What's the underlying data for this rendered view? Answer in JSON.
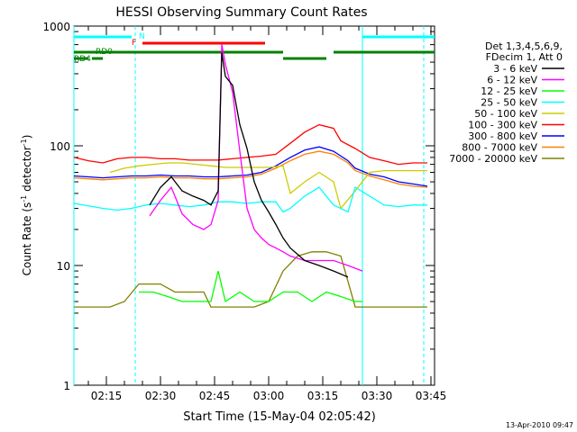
{
  "chart_data": {
    "type": "line",
    "title": "HESSI Observing Summary Count Rates",
    "xlabel": "Start Time (15-May-04 02:05:42)",
    "ylabel_main": "Count Rate (s",
    "ylabel_sup1": "-1",
    "ylabel_mid": " detector",
    "ylabel_sup2": "-1",
    "ylabel_end": ")",
    "y_scale": "log",
    "ylim": [
      1,
      1000
    ],
    "xlim": [
      "02:06",
      "03:46"
    ],
    "x_ticks": [
      "02:15",
      "02:30",
      "02:45",
      "03:00",
      "03:15",
      "03:30",
      "03:45"
    ],
    "y_tick_labels": [
      "1",
      "10",
      "100",
      "1000"
    ],
    "legend_header": [
      "Det 1,3,4,5,6,9,",
      "FDecim 1, Att 0"
    ],
    "timestamp": "13-Apr-2010 09:47",
    "flags": [
      {
        "label": "N",
        "color": "#00ffff"
      },
      {
        "label": "F",
        "color": "#ff0000"
      },
      {
        "label": "RD0",
        "color": "#008000"
      },
      {
        "label": "RD4",
        "color": "#008000"
      }
    ],
    "series": [
      {
        "name": "3 - 6 keV",
        "color": "#000000",
        "x": [
          "02:16",
          "02:20",
          "02:24",
          "02:27",
          "02:30",
          "02:33",
          "02:36",
          "02:39",
          "02:42",
          "02:44",
          "02:46",
          "02:47",
          "02:48",
          "02:50",
          "02:52",
          "02:54",
          "02:56",
          "02:58",
          "03:00",
          "03:02",
          "03:04",
          "03:06",
          "03:10",
          "03:14",
          "03:18",
          "03:22",
          "03:26"
        ],
        "y": [
          null,
          null,
          null,
          32,
          45,
          55,
          42,
          38,
          35,
          32,
          42,
          600,
          380,
          320,
          150,
          95,
          50,
          35,
          28,
          22,
          17,
          14,
          11,
          10,
          9,
          8,
          null
        ]
      },
      {
        "name": "6 - 12 keV",
        "color": "#ff00ff",
        "x": [
          "02:24",
          "02:27",
          "02:30",
          "02:33",
          "02:36",
          "02:39",
          "02:42",
          "02:44",
          "02:46",
          "02:47",
          "02:48",
          "02:50",
          "02:52",
          "02:54",
          "02:56",
          "02:58",
          "03:00",
          "03:02",
          "03:04",
          "03:06",
          "03:10",
          "03:14",
          "03:18",
          "03:22",
          "03:26"
        ],
        "y": [
          null,
          26,
          35,
          45,
          27,
          22,
          20,
          22,
          35,
          700,
          480,
          280,
          90,
          30,
          20,
          17,
          15,
          14,
          13,
          12,
          11,
          11,
          11,
          10,
          9
        ]
      },
      {
        "name": "12 - 25 keV",
        "color": "#00ff00",
        "x": [
          "02:24",
          "02:28",
          "02:32",
          "02:36",
          "02:40",
          "02:44",
          "02:46",
          "02:48",
          "02:52",
          "02:56",
          "03:00",
          "03:04",
          "03:08",
          "03:12",
          "03:16",
          "03:20",
          "03:24",
          "03:26"
        ],
        "y": [
          6,
          6,
          5.5,
          5,
          5,
          5,
          9,
          5,
          6,
          5,
          5,
          6,
          6,
          5,
          6,
          5.5,
          5,
          5
        ]
      },
      {
        "name": "25 - 50 keV",
        "color": "#00ffff",
        "x": [
          "02:06",
          "02:14",
          "02:18",
          "02:22",
          "02:26",
          "02:30",
          "02:34",
          "02:38",
          "02:42",
          "02:46",
          "02:50",
          "02:54",
          "02:58",
          "03:02",
          "03:04",
          "03:06",
          "03:10",
          "03:14",
          "03:18",
          "03:22",
          "03:24",
          "03:28",
          "03:32",
          "03:36",
          "03:40",
          "03:44"
        ],
        "y": [
          33,
          30,
          29,
          30,
          32,
          33,
          32,
          31,
          32,
          34,
          34,
          33,
          34,
          34,
          28,
          30,
          38,
          45,
          32,
          28,
          45,
          38,
          32,
          31,
          32,
          32
        ]
      },
      {
        "name": "50 - 100 keV",
        "color": "#cccc00",
        "x": [
          "02:16",
          "02:20",
          "02:24",
          "02:28",
          "02:32",
          "02:36",
          "02:40",
          "02:44",
          "02:48",
          "02:52",
          "02:56",
          "03:00",
          "03:04",
          "03:06",
          "03:10",
          "03:14",
          "03:18",
          "03:20",
          "03:24",
          "03:28",
          "03:32",
          "03:36",
          "03:40",
          "03:44"
        ],
        "y": [
          60,
          65,
          68,
          70,
          72,
          72,
          70,
          68,
          66,
          66,
          66,
          66,
          68,
          40,
          50,
          60,
          50,
          30,
          42,
          60,
          62,
          62,
          62,
          62
        ]
      },
      {
        "name": "100 - 300 keV",
        "color": "#ff0000",
        "x": [
          "02:06",
          "02:10",
          "02:14",
          "02:18",
          "02:22",
          "02:26",
          "02:30",
          "02:34",
          "02:38",
          "02:42",
          "02:46",
          "02:50",
          "02:54",
          "02:58",
          "03:02",
          "03:06",
          "03:10",
          "03:14",
          "03:18",
          "03:20",
          "03:24",
          "03:28",
          "03:32",
          "03:36",
          "03:40",
          "03:44"
        ],
        "y": [
          80,
          75,
          72,
          78,
          80,
          80,
          78,
          78,
          76,
          76,
          76,
          78,
          80,
          82,
          85,
          105,
          130,
          150,
          140,
          110,
          95,
          80,
          75,
          70,
          72,
          72
        ]
      },
      {
        "name": "300 - 800 keV",
        "color": "#0000ff",
        "x": [
          "02:06",
          "02:10",
          "02:14",
          "02:18",
          "02:22",
          "02:26",
          "02:30",
          "02:34",
          "02:38",
          "02:42",
          "02:46",
          "02:50",
          "02:54",
          "02:58",
          "03:02",
          "03:06",
          "03:10",
          "03:14",
          "03:18",
          "03:22",
          "03:24",
          "03:28",
          "03:32",
          "03:36",
          "03:40",
          "03:44"
        ],
        "y": [
          56,
          55,
          54,
          55,
          56,
          56,
          57,
          56,
          56,
          55,
          55,
          56,
          57,
          60,
          68,
          80,
          92,
          98,
          90,
          75,
          65,
          58,
          55,
          50,
          48,
          46
        ]
      },
      {
        "name": "800 - 7000 keV",
        "color": "#ff8000",
        "x": [
          "02:06",
          "02:10",
          "02:14",
          "02:18",
          "02:22",
          "02:26",
          "02:30",
          "02:34",
          "02:38",
          "02:42",
          "02:46",
          "02:50",
          "02:54",
          "02:58",
          "03:02",
          "03:06",
          "03:10",
          "03:14",
          "03:18",
          "03:22",
          "03:24",
          "03:28",
          "03:32",
          "03:36",
          "03:40",
          "03:44"
        ],
        "y": [
          54,
          53,
          52,
          53,
          54,
          54,
          55,
          54,
          54,
          53,
          53,
          54,
          55,
          58,
          65,
          75,
          85,
          90,
          85,
          72,
          62,
          56,
          52,
          48,
          46,
          45
        ]
      },
      {
        "name": "7000 - 20000 keV",
        "color": "#808000",
        "x": [
          "02:06",
          "02:12",
          "02:16",
          "02:20",
          "02:24",
          "02:26",
          "02:30",
          "02:34",
          "02:38",
          "02:42",
          "02:44",
          "02:48",
          "02:52",
          "02:56",
          "03:00",
          "03:04",
          "03:08",
          "03:12",
          "03:16",
          "03:20",
          "03:24",
          "03:28",
          "03:32",
          "03:36",
          "03:40",
          "03:44"
        ],
        "y": [
          4.5,
          4.5,
          4.5,
          5,
          7,
          7,
          7,
          6,
          6,
          6,
          4.5,
          4.5,
          4.5,
          4.5,
          5,
          9,
          12,
          13,
          13,
          12,
          4.5,
          4.5,
          4.5,
          4.5,
          4.5,
          4.5
        ]
      }
    ]
  }
}
